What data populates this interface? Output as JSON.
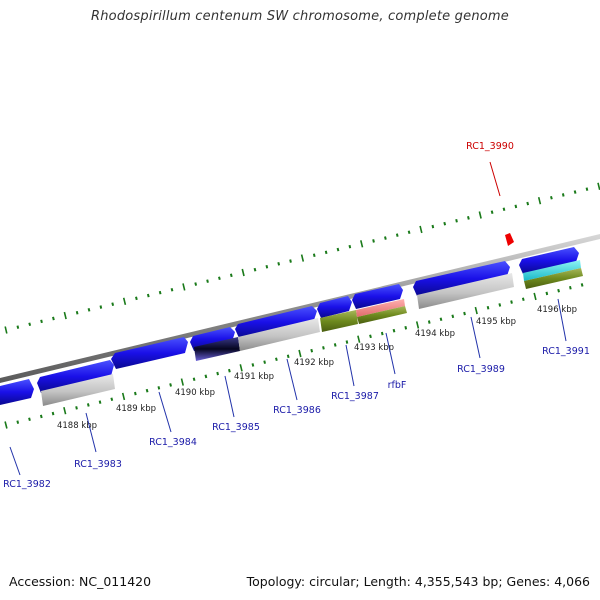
{
  "title": "Rhodospirillum centenum SW chromosome, complete genome",
  "footer": {
    "accession": "Accession: NC_011420",
    "summary": "Topology: circular; Length: 4,355,543 bp; Genes: 4,066"
  },
  "colors": {
    "backbone": "#8c8c8c",
    "forward_gene": "#1a0fe6",
    "reverse_gene": "#bdbdbd",
    "highlight": "#cc0000",
    "tick": "#1a7a1a",
    "gene_label": "#1a1aa8"
  },
  "scale": {
    "unit": "kbp",
    "ticks": [
      {
        "label": "4188 kbp"
      },
      {
        "label": "4189 kbp"
      },
      {
        "label": "4190 kbp"
      },
      {
        "label": "4191 kbp"
      },
      {
        "label": "4192 kbp"
      },
      {
        "label": "4193 kbp"
      },
      {
        "label": "4194 kbp"
      },
      {
        "label": "4195 kbp"
      },
      {
        "label": "4196 kbp"
      }
    ]
  },
  "genes": [
    {
      "name": "RC1_3982"
    },
    {
      "name": "RC1_3983"
    },
    {
      "name": "RC1_3984"
    },
    {
      "name": "RC1_3985"
    },
    {
      "name": "RC1_3986"
    },
    {
      "name": "RC1_3987"
    },
    {
      "name": "rfbF"
    },
    {
      "name": "RC1_3989"
    },
    {
      "name": "RC1_3990",
      "highlighted": true
    },
    {
      "name": "RC1_3991"
    }
  ]
}
